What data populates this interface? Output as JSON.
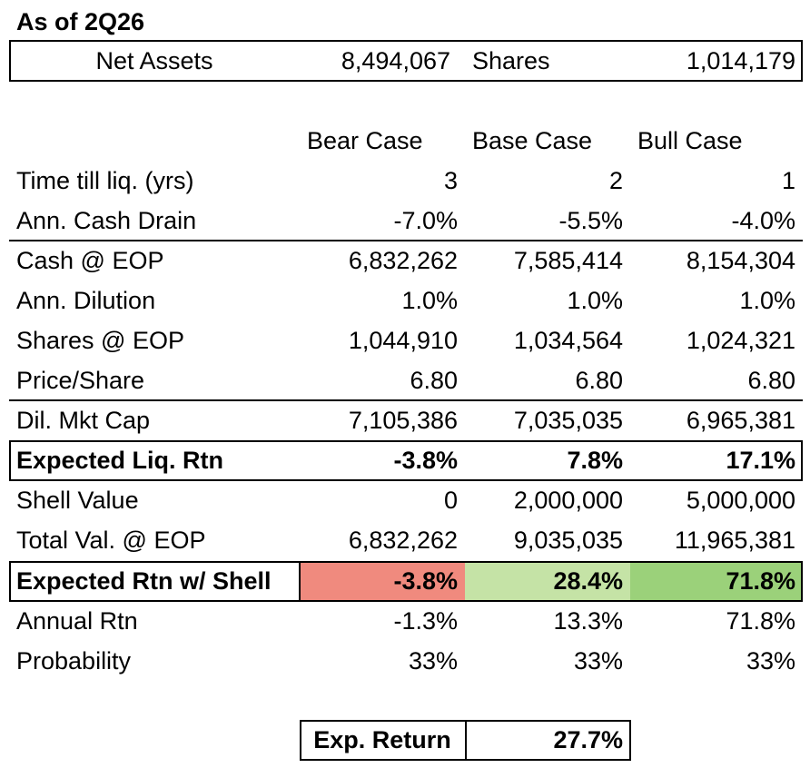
{
  "title": "As of 2Q26",
  "summary": {
    "net_assets_label": "Net Assets",
    "net_assets_value": "8,494,067",
    "shares_label": "Shares",
    "shares_value": "1,014,179"
  },
  "headers": [
    "Bear Case",
    "Base Case",
    "Bull Case"
  ],
  "rows": [
    {
      "label": "Time till liq. (yrs)",
      "values": [
        "3",
        "2",
        "1"
      ]
    },
    {
      "label": "Ann. Cash Drain",
      "values": [
        "-7.0%",
        "-5.5%",
        "-4.0%"
      ]
    },
    {
      "label": "Cash @ EOP",
      "values": [
        "6,832,262",
        "7,585,414",
        "8,154,304"
      ]
    },
    {
      "label": "Ann. Dilution",
      "values": [
        "1.0%",
        "1.0%",
        "1.0%"
      ]
    },
    {
      "label": "Shares @ EOP",
      "values": [
        "1,044,910",
        "1,034,564",
        "1,024,321"
      ]
    },
    {
      "label": "Price/Share",
      "values": [
        "6.80",
        "6.80",
        "6.80"
      ]
    },
    {
      "label": "Dil. Mkt Cap",
      "values": [
        "7,105,386",
        "7,035,035",
        "6,965,381"
      ]
    },
    {
      "label": "Expected Liq. Rtn",
      "values": [
        "-3.8%",
        "7.8%",
        "17.1%"
      ]
    },
    {
      "label": "Shell Value",
      "values": [
        "0",
        "2,000,000",
        "5,000,000"
      ]
    },
    {
      "label": "Total Val. @ EOP",
      "values": [
        "6,832,262",
        "9,035,035",
        "11,965,381"
      ]
    },
    {
      "label": "Expected Rtn w/ Shell",
      "values": [
        "-3.8%",
        "28.4%",
        "71.8%"
      ]
    },
    {
      "label": "Annual Rtn",
      "values": [
        "-1.3%",
        "13.3%",
        "71.8%"
      ]
    },
    {
      "label": "Probability",
      "values": [
        "33%",
        "33%",
        "33%"
      ]
    }
  ],
  "shell_colors": [
    "#f08a7e",
    "#c5e3a6",
    "#9bd17a"
  ],
  "exp_return": {
    "label": "Exp. Return",
    "value": "27.7%"
  }
}
